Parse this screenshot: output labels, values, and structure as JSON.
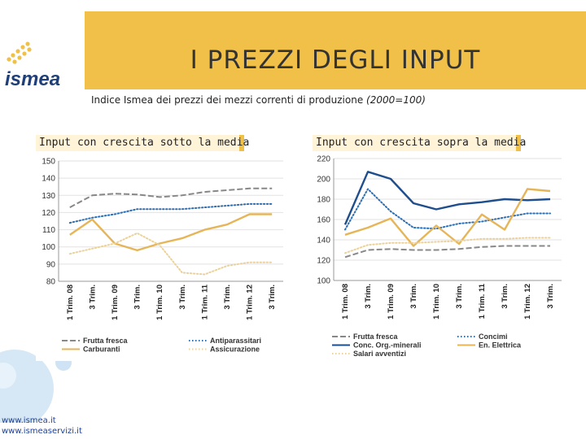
{
  "header": {
    "title": "I PREZZI DEGLI INPUT",
    "logo_text": "ismea"
  },
  "subtitle": {
    "main": "Indice Ismea dei prezzi dei mezzi correnti di produzione",
    "note": "(2000=100)"
  },
  "footer": {
    "link1": "www.ismea.it",
    "link2": "www.ismeaservizi.it"
  },
  "colors": {
    "banner": "#f0c048",
    "gray_series": "#888888",
    "blue_series": "#1f4e8c",
    "gold_series": "#e6b558",
    "light_gold": "#ecd29a",
    "dotted_blue": "#2c6fb3"
  },
  "chart_data": [
    {
      "type": "line",
      "title": "Input con crescita sotto la media",
      "ylim": [
        80,
        150
      ],
      "yticks": [
        80,
        90,
        100,
        110,
        120,
        130,
        140,
        150
      ],
      "x": [
        "1 Trim. 08",
        "3 Trim.",
        "1 Trim. 09",
        "3 Trim.",
        "1 Trim. 10",
        "3 Trim.",
        "1 Trim. 11",
        "3 Trim.",
        "1 Trim. 12",
        "3 Trim."
      ],
      "legend_position": "bottom",
      "series": [
        {
          "name": "Frutta fresca",
          "style": "dashed",
          "color": "#888888",
          "values": [
            123,
            130,
            131,
            130.5,
            129,
            130,
            132,
            133,
            134,
            134
          ]
        },
        {
          "name": "Antiparassitari",
          "style": "dotted",
          "color": "#2c6fb3",
          "values": [
            114,
            117,
            119,
            122,
            122,
            122,
            123,
            124,
            125,
            125
          ]
        },
        {
          "name": "Carburanti",
          "style": "solid",
          "color": "#e6b558",
          "values": [
            107,
            116,
            102,
            98,
            102,
            105,
            110,
            113,
            119,
            119
          ]
        },
        {
          "name": "Assicurazione",
          "style": "dotted",
          "color": "#ecd29a",
          "values": [
            96,
            99,
            102,
            108,
            101,
            85,
            84,
            89,
            91,
            91
          ]
        }
      ]
    },
    {
      "type": "line",
      "title": "Input con crescita sopra la media",
      "ylim": [
        100,
        220
      ],
      "yticks": [
        100,
        120,
        140,
        160,
        180,
        200,
        220
      ],
      "x": [
        "1 Trim. 08",
        "3 Trim.",
        "1 Trim. 09",
        "3 Trim.",
        "1 Trim. 10",
        "3 Trim.",
        "1 Trim. 11",
        "3 Trim.",
        "1 Trim. 12",
        "3 Trim."
      ],
      "legend_position": "bottom",
      "series": [
        {
          "name": "Frutta fresca",
          "style": "dashed",
          "color": "#888888",
          "values": [
            123,
            130,
            131,
            130,
            130,
            131,
            133,
            134,
            134,
            134
          ]
        },
        {
          "name": "Concimi",
          "style": "dotted",
          "color": "#2c6fb3",
          "values": [
            150,
            190,
            168,
            152,
            151,
            156,
            158,
            162,
            166,
            166
          ]
        },
        {
          "name": "Conc. Org.-minerali",
          "style": "solid",
          "color": "#1f4e8c",
          "values": [
            155,
            207,
            200,
            176,
            170,
            175,
            177,
            180,
            179,
            180
          ]
        },
        {
          "name": "En. Elettrica",
          "style": "solid",
          "color": "#e6b558",
          "values": [
            145,
            152,
            161,
            134,
            154,
            136,
            165,
            150,
            190,
            188
          ]
        },
        {
          "name": "Salari avventizi",
          "style": "dotted",
          "color": "#ecd29a",
          "values": [
            127,
            135,
            137,
            137,
            138,
            139,
            141,
            141,
            142,
            142
          ]
        }
      ]
    }
  ]
}
